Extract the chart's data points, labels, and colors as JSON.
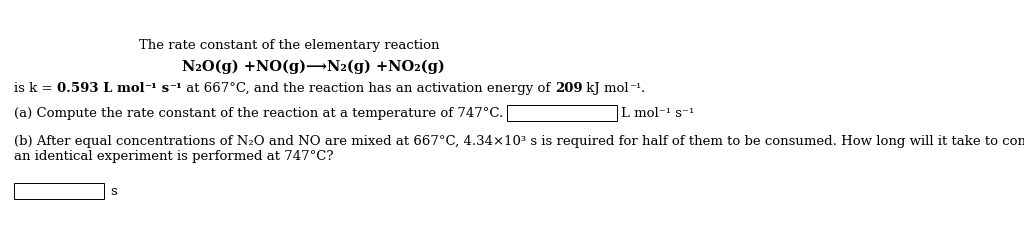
{
  "bg_color": "#ffffff",
  "title_line": "The rate constant of the elementary reaction",
  "reaction_line": "N₂O(g) +NO(g)⟶N₂(g) +NO₂(g)",
  "part_a_text": "(a) Compute the rate constant of the reaction at a temperature of 747°C.",
  "part_a_units": "L mol⁻¹ s⁻¹",
  "part_b_line1": "(b) After equal concentrations of N₂O and NO are mixed at 667°C, 4.34×10³ s is required for half of them to be consumed. How long will it take to consume half of the reactants if",
  "part_b_line2": "an identical experiment is performed at 747°C?",
  "part_b_units": "s",
  "k_prefix": "is k = ",
  "k_bold": "0.593 L mol",
  "k_bold_sup": "⁻¹",
  "k_bold2": " s",
  "k_bold_sup2": "⁻¹",
  "k_middle": " at 667°C, and the reaction has an activation energy of ",
  "k_bold3": "209",
  "k_suffix": " kJ mol",
  "k_suffix_sup": "⁻¹",
  "k_end": ".",
  "font_size": 9.5,
  "font_size_reaction": 10.5
}
